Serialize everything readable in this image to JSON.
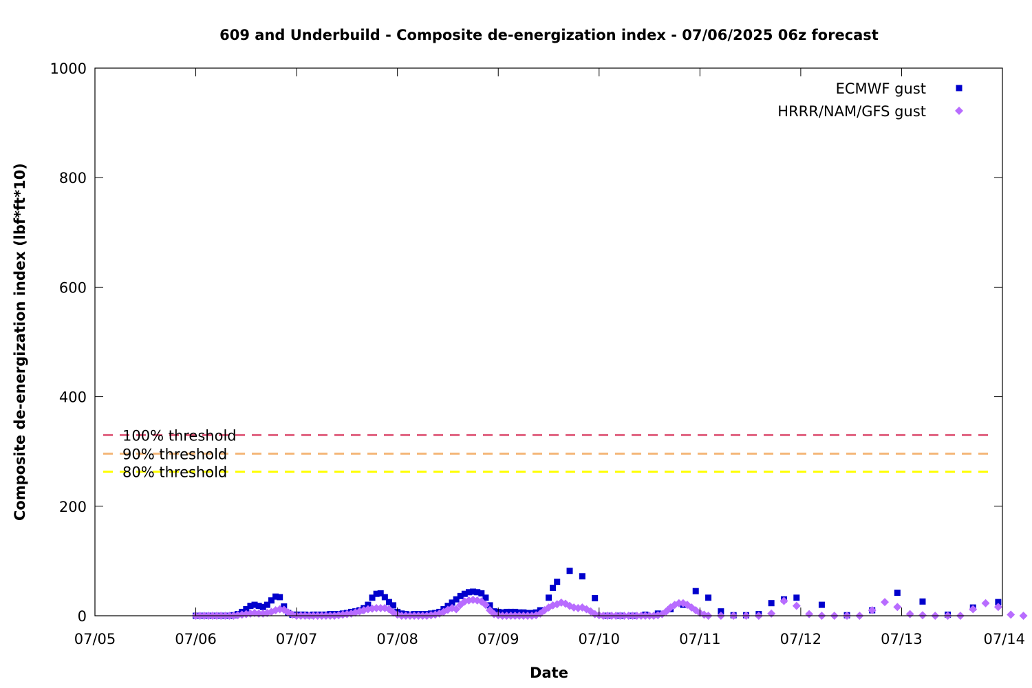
{
  "chart_data": {
    "type": "scatter",
    "title": "609 and Underbuild - Composite de-energization index - 07/06/2025 06z forecast",
    "xlabel": "Date",
    "ylabel": "Composite de-energization index (lbf*ft*10)",
    "xlim": [
      "07/05",
      "07/14"
    ],
    "ylim": [
      0,
      1000
    ],
    "x_ticks": [
      "07/05",
      "07/06",
      "07/07",
      "07/08",
      "07/09",
      "07/10",
      "07/11",
      "07/12",
      "07/13",
      "07/14"
    ],
    "y_ticks": [
      0,
      200,
      400,
      600,
      800,
      1000
    ],
    "grid": false,
    "legend_position": "top-right",
    "thresholds": [
      {
        "name": "100% threshold",
        "value": 330,
        "color": "#e0607e"
      },
      {
        "name": "90% threshold",
        "value": 296,
        "color": "#f4b77a"
      },
      {
        "name": "80% threshold",
        "value": 263,
        "color": "#ffff00"
      }
    ],
    "series": [
      {
        "name": "ECMWF gust",
        "marker": "square",
        "color": "#0000cc",
        "points": [
          [
            "07/06 00:00",
            0
          ],
          [
            "07/06 01:00",
            0
          ],
          [
            "07/06 02:00",
            0
          ],
          [
            "07/06 03:00",
            0
          ],
          [
            "07/06 04:00",
            0
          ],
          [
            "07/06 05:00",
            0
          ],
          [
            "07/06 06:00",
            0
          ],
          [
            "07/06 07:00",
            0
          ],
          [
            "07/06 08:00",
            0
          ],
          [
            "07/06 09:00",
            1
          ],
          [
            "07/06 10:00",
            3
          ],
          [
            "07/06 11:00",
            7
          ],
          [
            "07/06 12:00",
            12
          ],
          [
            "07/06 13:00",
            18
          ],
          [
            "07/06 14:00",
            20
          ],
          [
            "07/06 15:00",
            18
          ],
          [
            "07/06 16:00",
            16
          ],
          [
            "07/06 17:00",
            20
          ],
          [
            "07/06 18:00",
            28
          ],
          [
            "07/06 19:00",
            35
          ],
          [
            "07/06 20:00",
            34
          ],
          [
            "07/06 21:00",
            17
          ],
          [
            "07/06 22:00",
            5
          ],
          [
            "07/06 23:00",
            2
          ],
          [
            "07/07 00:00",
            2
          ],
          [
            "07/07 01:00",
            2
          ],
          [
            "07/07 02:00",
            2
          ],
          [
            "07/07 03:00",
            1
          ],
          [
            "07/07 04:00",
            2
          ],
          [
            "07/07 05:00",
            2
          ],
          [
            "07/07 06:00",
            2
          ],
          [
            "07/07 07:00",
            2
          ],
          [
            "07/07 08:00",
            3
          ],
          [
            "07/07 09:00",
            3
          ],
          [
            "07/07 10:00",
            3
          ],
          [
            "07/07 11:00",
            4
          ],
          [
            "07/07 12:00",
            5
          ],
          [
            "07/07 13:00",
            7
          ],
          [
            "07/07 14:00",
            8
          ],
          [
            "07/07 15:00",
            10
          ],
          [
            "07/07 16:00",
            14
          ],
          [
            "07/07 17:00",
            20
          ],
          [
            "07/07 18:00",
            33
          ],
          [
            "07/07 19:00",
            40
          ],
          [
            "07/07 20:00",
            41
          ],
          [
            "07/07 21:00",
            34
          ],
          [
            "07/07 22:00",
            25
          ],
          [
            "07/07 23:00",
            19
          ],
          [
            "07/08 00:00",
            7
          ],
          [
            "07/08 01:00",
            4
          ],
          [
            "07/08 02:00",
            3
          ],
          [
            "07/08 03:00",
            2
          ],
          [
            "07/08 04:00",
            3
          ],
          [
            "07/08 05:00",
            3
          ],
          [
            "07/08 06:00",
            3
          ],
          [
            "07/08 07:00",
            3
          ],
          [
            "07/08 08:00",
            4
          ],
          [
            "07/08 09:00",
            5
          ],
          [
            "07/08 10:00",
            7
          ],
          [
            "07/08 11:00",
            12
          ],
          [
            "07/08 12:00",
            18
          ],
          [
            "07/08 13:00",
            24
          ],
          [
            "07/08 14:00",
            30
          ],
          [
            "07/08 15:00",
            36
          ],
          [
            "07/08 16:00",
            40
          ],
          [
            "07/08 17:00",
            43
          ],
          [
            "07/08 18:00",
            44
          ],
          [
            "07/08 19:00",
            43
          ],
          [
            "07/08 20:00",
            41
          ],
          [
            "07/08 21:00",
            33
          ],
          [
            "07/08 22:00",
            19
          ],
          [
            "07/08 23:00",
            8
          ],
          [
            "07/09 00:00",
            7
          ],
          [
            "07/09 01:00",
            6
          ],
          [
            "07/09 02:00",
            7
          ],
          [
            "07/09 03:00",
            7
          ],
          [
            "07/09 04:00",
            7
          ],
          [
            "07/09 05:00",
            6
          ],
          [
            "07/09 06:00",
            6
          ],
          [
            "07/09 07:00",
            5
          ],
          [
            "07/09 08:00",
            5
          ],
          [
            "07/09 09:00",
            6
          ],
          [
            "07/09 10:00",
            10
          ],
          [
            "07/09 12:00",
            33
          ],
          [
            "07/09 13:00",
            51
          ],
          [
            "07/09 14:00",
            62
          ],
          [
            "07/09 17:00",
            82
          ],
          [
            "07/09 20:00",
            72
          ],
          [
            "07/09 23:00",
            32
          ],
          [
            "07/10 02:00",
            0
          ],
          [
            "07/10 05:00",
            0
          ],
          [
            "07/10 08:00",
            0
          ],
          [
            "07/10 11:00",
            2
          ],
          [
            "07/10 14:00",
            4
          ],
          [
            "07/10 17:00",
            12
          ],
          [
            "07/10 20:00",
            20
          ],
          [
            "07/10 23:00",
            45
          ],
          [
            "07/11 02:00",
            33
          ],
          [
            "07/11 05:00",
            8
          ],
          [
            "07/11 08:00",
            1
          ],
          [
            "07/11 11:00",
            1
          ],
          [
            "07/11 14:00",
            3
          ],
          [
            "07/11 17:00",
            23
          ],
          [
            "07/11 20:00",
            30
          ],
          [
            "07/11 23:00",
            33
          ],
          [
            "07/12 05:00",
            20
          ],
          [
            "07/12 11:00",
            1
          ],
          [
            "07/12 17:00",
            10
          ],
          [
            "07/12 23:00",
            42
          ],
          [
            "07/13 05:00",
            26
          ],
          [
            "07/13 11:00",
            2
          ],
          [
            "07/13 17:00",
            15
          ],
          [
            "07/13 23:00",
            25
          ]
        ]
      },
      {
        "name": "HRRR/NAM/GFS gust",
        "marker": "diamond",
        "color": "#b86cff",
        "points": [
          [
            "07/06 00:00",
            0
          ],
          [
            "07/06 01:00",
            0
          ],
          [
            "07/06 02:00",
            0
          ],
          [
            "07/06 03:00",
            0
          ],
          [
            "07/06 04:00",
            0
          ],
          [
            "07/06 05:00",
            0
          ],
          [
            "07/06 06:00",
            0
          ],
          [
            "07/06 07:00",
            0
          ],
          [
            "07/06 08:00",
            0
          ],
          [
            "07/06 09:00",
            0
          ],
          [
            "07/06 10:00",
            1
          ],
          [
            "07/06 11:00",
            2
          ],
          [
            "07/06 12:00",
            3
          ],
          [
            "07/06 13:00",
            4
          ],
          [
            "07/06 14:00",
            5
          ],
          [
            "07/06 15:00",
            4
          ],
          [
            "07/06 16:00",
            4
          ],
          [
            "07/06 17:00",
            5
          ],
          [
            "07/06 18:00",
            7
          ],
          [
            "07/06 19:00",
            10
          ],
          [
            "07/06 20:00",
            12
          ],
          [
            "07/06 21:00",
            11
          ],
          [
            "07/06 22:00",
            6
          ],
          [
            "07/06 23:00",
            2
          ],
          [
            "07/07 00:00",
            0
          ],
          [
            "07/07 01:00",
            0
          ],
          [
            "07/07 02:00",
            0
          ],
          [
            "07/07 03:00",
            0
          ],
          [
            "07/07 04:00",
            0
          ],
          [
            "07/07 05:00",
            0
          ],
          [
            "07/07 06:00",
            0
          ],
          [
            "07/07 07:00",
            0
          ],
          [
            "07/07 08:00",
            0
          ],
          [
            "07/07 09:00",
            0
          ],
          [
            "07/07 10:00",
            1
          ],
          [
            "07/07 11:00",
            2
          ],
          [
            "07/07 12:00",
            3
          ],
          [
            "07/07 13:00",
            4
          ],
          [
            "07/07 14:00",
            6
          ],
          [
            "07/07 15:00",
            8
          ],
          [
            "07/07 16:00",
            10
          ],
          [
            "07/07 17:00",
            12
          ],
          [
            "07/07 18:00",
            13
          ],
          [
            "07/07 19:00",
            14
          ],
          [
            "07/07 20:00",
            14
          ],
          [
            "07/07 21:00",
            14
          ],
          [
            "07/07 22:00",
            12
          ],
          [
            "07/07 23:00",
            6
          ],
          [
            "07/08 00:00",
            2
          ],
          [
            "07/08 01:00",
            0
          ],
          [
            "07/08 02:00",
            0
          ],
          [
            "07/08 03:00",
            0
          ],
          [
            "07/08 04:00",
            0
          ],
          [
            "07/08 05:00",
            0
          ],
          [
            "07/08 06:00",
            0
          ],
          [
            "07/08 07:00",
            0
          ],
          [
            "07/08 08:00",
            1
          ],
          [
            "07/08 09:00",
            2
          ],
          [
            "07/08 10:00",
            4
          ],
          [
            "07/08 11:00",
            7
          ],
          [
            "07/08 12:00",
            11
          ],
          [
            "07/08 13:00",
            14
          ],
          [
            "07/08 14:00",
            12
          ],
          [
            "07/08 15:00",
            20
          ],
          [
            "07/08 16:00",
            26
          ],
          [
            "07/08 17:00",
            28
          ],
          [
            "07/08 18:00",
            29
          ],
          [
            "07/08 19:00",
            28
          ],
          [
            "07/08 20:00",
            26
          ],
          [
            "07/08 21:00",
            20
          ],
          [
            "07/08 22:00",
            10
          ],
          [
            "07/08 23:00",
            3
          ],
          [
            "07/09 00:00",
            1
          ],
          [
            "07/09 01:00",
            0
          ],
          [
            "07/09 02:00",
            0
          ],
          [
            "07/09 03:00",
            0
          ],
          [
            "07/09 04:00",
            0
          ],
          [
            "07/09 05:00",
            0
          ],
          [
            "07/09 06:00",
            0
          ],
          [
            "07/09 07:00",
            0
          ],
          [
            "07/09 08:00",
            0
          ],
          [
            "07/09 09:00",
            1
          ],
          [
            "07/09 10:00",
            4
          ],
          [
            "07/09 11:00",
            10
          ],
          [
            "07/09 12:00",
            15
          ],
          [
            "07/09 13:00",
            19
          ],
          [
            "07/09 14:00",
            21
          ],
          [
            "07/09 15:00",
            24
          ],
          [
            "07/09 16:00",
            22
          ],
          [
            "07/09 17:00",
            18
          ],
          [
            "07/09 18:00",
            15
          ],
          [
            "07/09 19:00",
            14
          ],
          [
            "07/09 20:00",
            15
          ],
          [
            "07/09 21:00",
            12
          ],
          [
            "07/09 22:00",
            8
          ],
          [
            "07/09 23:00",
            3
          ],
          [
            "07/10 00:00",
            1
          ],
          [
            "07/10 01:00",
            0
          ],
          [
            "07/10 02:00",
            0
          ],
          [
            "07/10 03:00",
            0
          ],
          [
            "07/10 04:00",
            0
          ],
          [
            "07/10 05:00",
            0
          ],
          [
            "07/10 06:00",
            0
          ],
          [
            "07/10 07:00",
            0
          ],
          [
            "07/10 08:00",
            0
          ],
          [
            "07/10 09:00",
            0
          ],
          [
            "07/10 10:00",
            0
          ],
          [
            "07/10 11:00",
            0
          ],
          [
            "07/10 12:00",
            0
          ],
          [
            "07/10 13:00",
            0
          ],
          [
            "07/10 14:00",
            1
          ],
          [
            "07/10 15:00",
            3
          ],
          [
            "07/10 16:00",
            8
          ],
          [
            "07/10 17:00",
            15
          ],
          [
            "07/10 18:00",
            20
          ],
          [
            "07/10 19:00",
            23
          ],
          [
            "07/10 20:00",
            23
          ],
          [
            "07/10 21:00",
            20
          ],
          [
            "07/10 22:00",
            15
          ],
          [
            "07/10 23:00",
            10
          ],
          [
            "07/11 00:00",
            5
          ],
          [
            "07/11 01:00",
            2
          ],
          [
            "07/11 02:00",
            0
          ],
          [
            "07/11 05:00",
            0
          ],
          [
            "07/11 08:00",
            0
          ],
          [
            "07/11 11:00",
            0
          ],
          [
            "07/11 14:00",
            0
          ],
          [
            "07/11 17:00",
            4
          ],
          [
            "07/11 20:00",
            27
          ],
          [
            "07/11 23:00",
            18
          ],
          [
            "07/12 02:00",
            3
          ],
          [
            "07/12 05:00",
            0
          ],
          [
            "07/12 08:00",
            0
          ],
          [
            "07/12 11:00",
            0
          ],
          [
            "07/12 14:00",
            0
          ],
          [
            "07/12 17:00",
            10
          ],
          [
            "07/12 20:00",
            25
          ],
          [
            "07/12 23:00",
            16
          ],
          [
            "07/13 02:00",
            3
          ],
          [
            "07/13 05:00",
            1
          ],
          [
            "07/13 08:00",
            0
          ],
          [
            "07/13 11:00",
            0
          ],
          [
            "07/13 14:00",
            0
          ],
          [
            "07/13 17:00",
            12
          ],
          [
            "07/13 20:00",
            23
          ],
          [
            "07/13 23:00",
            16
          ],
          [
            "07/14 02:00",
            2
          ],
          [
            "07/14 05:00",
            0
          ]
        ]
      }
    ]
  }
}
